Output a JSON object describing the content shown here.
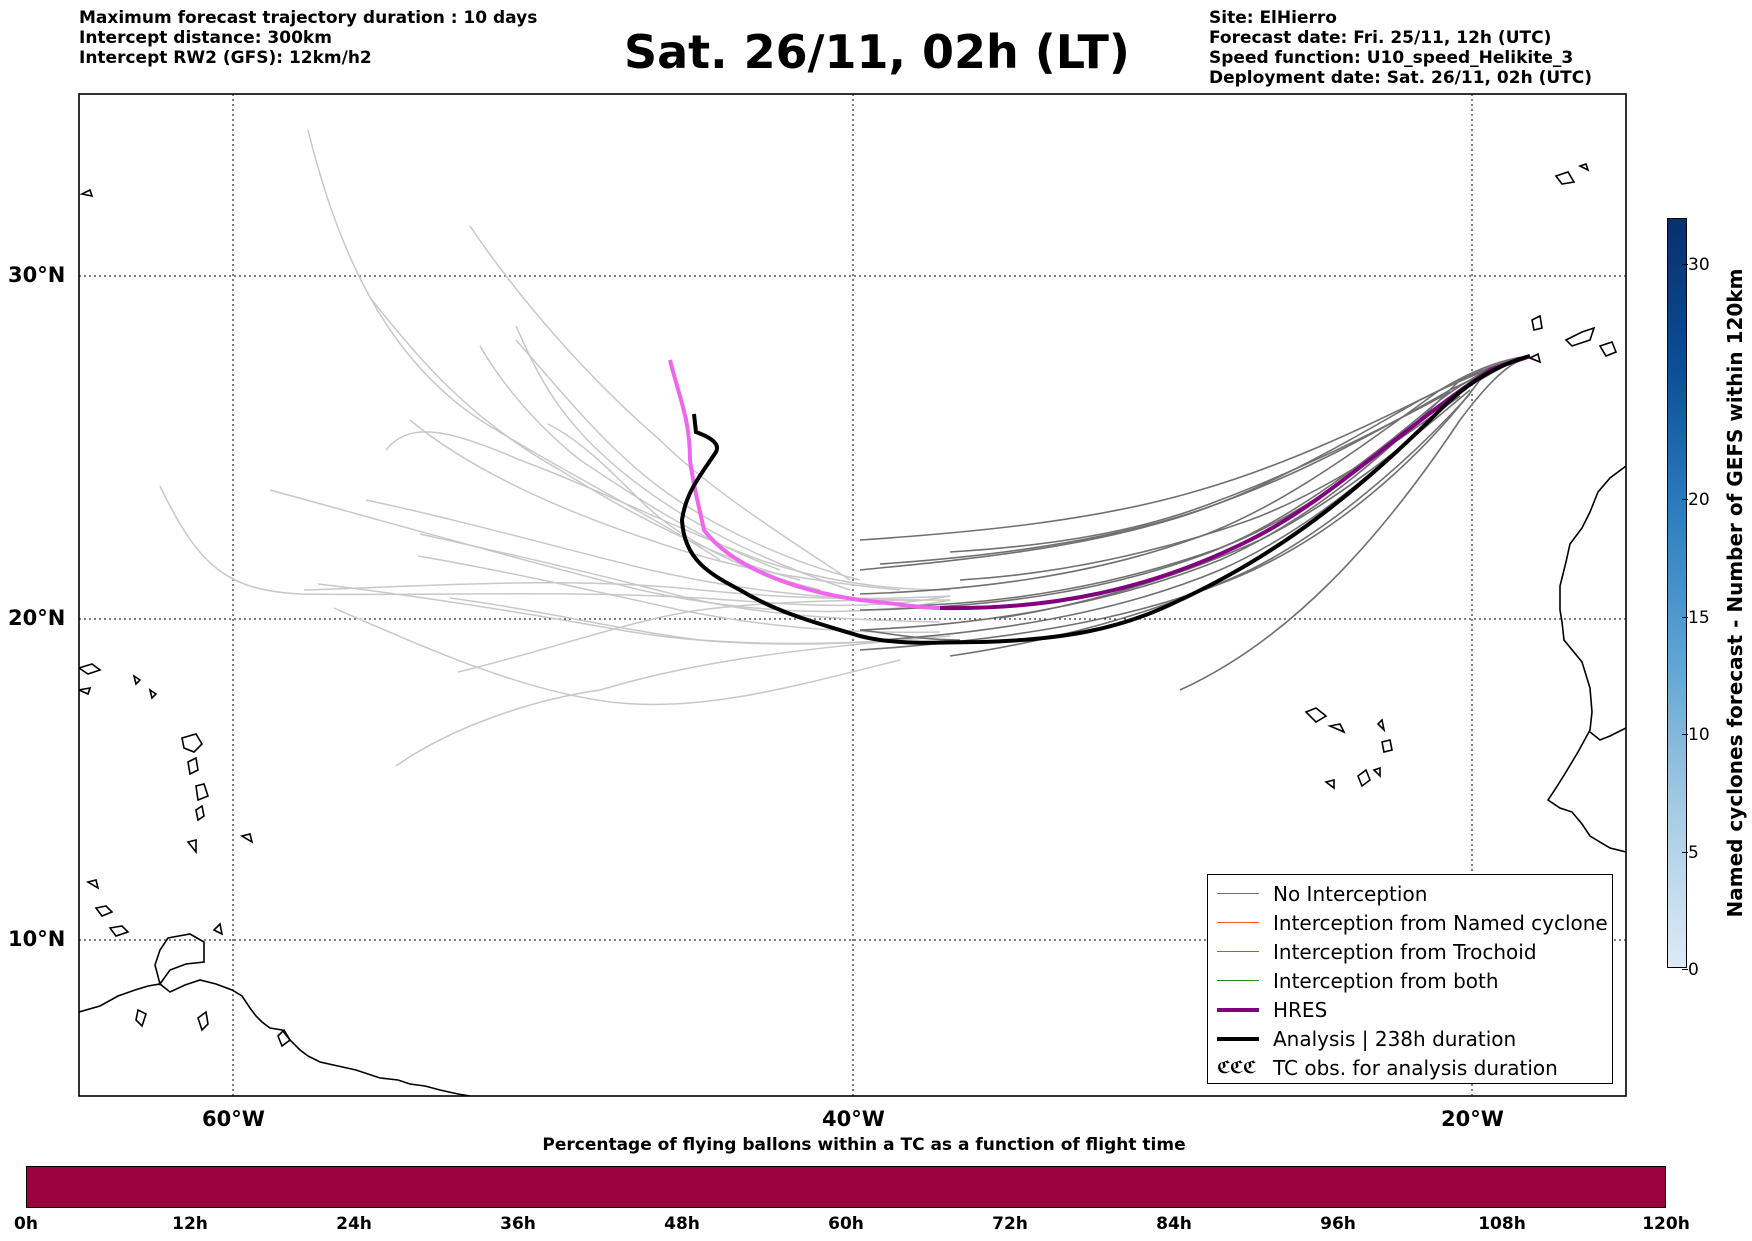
{
  "header": {
    "left_lines": [
      "Maximum forecast trajectory duration : 10 days",
      "Intercept distance: 300km",
      "Intercept RW2 (GFS):  12km/h2"
    ],
    "title": "Sat. 26/11, 02h (LT)",
    "right_lines": [
      "Site: ElHierro",
      "Forecast date: Fri. 25/11, 12h (UTC)",
      "Speed function: U10_speed_Helikite_3",
      "Deployment date: Sat. 26/11, 02h (UTC)"
    ]
  },
  "map": {
    "lat_labels": [
      "30°N",
      "20°N",
      "10°N"
    ],
    "lon_labels": [
      "60°W",
      "40°W",
      "20°W"
    ],
    "gridlines": "dotted",
    "colors": {
      "no_interception": "#707070",
      "ensemble_light": "#c8c8c8",
      "named_cyclone": "#ff5a1e",
      "trochoid": "#7f7f00",
      "both": "#228b22",
      "hres": "#800080",
      "hres_early": "#ee66ee",
      "analysis": "#000000"
    }
  },
  "legend": {
    "entries": [
      "No Interception",
      "Interception from Named cyclone",
      "Interception from Trochoid",
      "Interception from both",
      "HRES",
      "Analysis | 238h duration",
      "TC obs. for analysis duration"
    ],
    "tc_symbol": "ℭℭℭ"
  },
  "colorbar_vertical": {
    "label": "Named cyclones forecast - Number of GEFS within 120km",
    "ticks": [
      "30",
      "20",
      "15",
      "10",
      "5",
      "0"
    ],
    "range": [
      0,
      32
    ]
  },
  "colorbar_horizontal": {
    "title": "Percentage of flying ballons within a TC as a function of flight time",
    "ticks": [
      "0h",
      "12h",
      "24h",
      "36h",
      "48h",
      "60h",
      "72h",
      "84h",
      "96h",
      "108h",
      "120h"
    ],
    "color": "#9b003f"
  }
}
